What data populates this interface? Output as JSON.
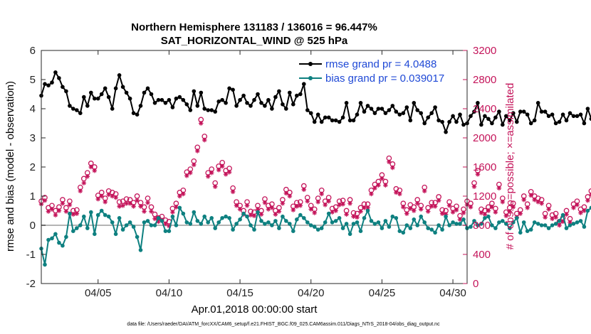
{
  "chart_data": {
    "type": "line",
    "title": [
      "Northern Hemisphere 131183 / 136016 = 96.447%",
      "SAT_HORIZONTAL_WIND @ 525 hPa"
    ],
    "xlabel": "Apr.01,2018 00:00:00 start",
    "ylabel_left": "rmse and bias (model - observation)",
    "ylabel_right": "# of obs: o=possible; ×=assimilated",
    "x_tick_labels": [
      "04/05",
      "04/10",
      "04/15",
      "04/20",
      "04/25",
      "04/30"
    ],
    "x_tick_values": [
      5,
      10,
      15,
      20,
      25,
      30
    ],
    "xlim": [
      1,
      31
    ],
    "ylim_left": [
      -2,
      6
    ],
    "ylim_right": [
      0,
      3200
    ],
    "y_left_ticks": [
      -2,
      -1,
      0,
      1,
      2,
      3,
      4,
      5,
      6
    ],
    "y_right_ticks": [
      0,
      400,
      800,
      1200,
      1600,
      2000,
      2400,
      2800,
      3200
    ],
    "zero_line": 0,
    "series": [
      {
        "name": "rmse",
        "legend": "rmse grand pr = 4.0488",
        "color": "#000000",
        "x_start": 1.0,
        "x_step": 0.25,
        "values": [
          4.45,
          4.85,
          4.8,
          4.9,
          5.25,
          5.05,
          4.75,
          4.6,
          4.1,
          4.0,
          3.95,
          3.85,
          4.4,
          4.1,
          4.55,
          4.35,
          4.35,
          4.5,
          4.7,
          4.4,
          4.0,
          4.7,
          5.15,
          4.75,
          4.55,
          4.35,
          3.85,
          3.8,
          4.1,
          4.55,
          4.7,
          4.5,
          4.2,
          4.3,
          4.3,
          4.2,
          4.3,
          4.05,
          4.35,
          4.4,
          4.3,
          4.15,
          3.95,
          4.6,
          4.1,
          4.55,
          4.0,
          3.95,
          3.95,
          3.9,
          4.25,
          4.3,
          4.2,
          4.7,
          4.65,
          4.1,
          4.3,
          4.45,
          4.2,
          4.1,
          4.3,
          4.5,
          4.2,
          4.1,
          4.3,
          4.0,
          4.4,
          4.6,
          4.15,
          4.0,
          4.55,
          4.15,
          4.45,
          4.5,
          4.85,
          3.95,
          3.85,
          3.55,
          3.8,
          3.55,
          3.7,
          3.7,
          3.6,
          3.6,
          3.55,
          3.7,
          4.2,
          3.6,
          3.6,
          3.8,
          4.2,
          3.9,
          4.1,
          4.0,
          3.85,
          4.0,
          4.0,
          3.85,
          3.95,
          4.1,
          3.9,
          3.8,
          3.85,
          4.05,
          3.6,
          4.2,
          3.95,
          3.85,
          3.5,
          3.7,
          3.85,
          4.05,
          3.6,
          3.55,
          3.2,
          3.55,
          3.75,
          3.55,
          3.8,
          3.45,
          3.5,
          3.75,
          3.9,
          4.2,
          3.45,
          3.75,
          3.65,
          3.5,
          3.7,
          3.9,
          3.45,
          3.75,
          3.6,
          3.85,
          3.55,
          3.9,
          3.9,
          3.8,
          3.5,
          3.6,
          4.2,
          3.9,
          3.9,
          3.75,
          3.8,
          3.5,
          3.55,
          3.8,
          3.6,
          3.85,
          3.75,
          3.75,
          3.8,
          3.5,
          4.0,
          3.65,
          3.8,
          3.75,
          3.75,
          4.15,
          3.9,
          4.05,
          4.2,
          4.55,
          4.4,
          4.6,
          4.15,
          4.6,
          4.45,
          4.6,
          3.85,
          4.05,
          4.25,
          4.15,
          4.45,
          4.5,
          4.0,
          3.85,
          3.75,
          3.75,
          3.9,
          4.25,
          4.05,
          4.1
        ]
      },
      {
        "name": "bias",
        "legend": "bias grand pr = 0.039017",
        "color": "#0e8080",
        "x_start": 1.0,
        "x_step": 0.25,
        "values": [
          -0.8,
          -1.35,
          -0.5,
          -0.45,
          -0.3,
          -0.6,
          -0.7,
          -0.4,
          0.4,
          -0.2,
          -0.1,
          0.0,
          0.3,
          -0.1,
          0.45,
          -0.3,
          0.35,
          0.5,
          0.35,
          0.3,
          0.1,
          -0.3,
          0.25,
          -0.15,
          0.0,
          0.1,
          -0.05,
          -0.4,
          -0.85,
          0.1,
          0.15,
          0.0,
          0.0,
          0.25,
          0.15,
          -0.2,
          -0.2,
          0.3,
          0.0,
          0.6,
          0.4,
          0.1,
          0.05,
          0.45,
          0.15,
          0.05,
          0.3,
          0.1,
          0.25,
          -0.1,
          0.1,
          0.25,
          0.3,
          0.25,
          -0.15,
          0.05,
          0.2,
          0.4,
          0.3,
          0.0,
          -0.15,
          0.45,
          0.15,
          0.05,
          0.1,
          0.0,
          0.15,
          -0.1,
          0.3,
          0.15,
          0.05,
          -0.2,
          0.2,
          0.35,
          0.25,
          0.1,
          0.0,
          -0.05,
          -0.15,
          -0.1,
          0.1,
          0.4,
          0.1,
          0.15,
          0.25,
          -0.1,
          0.05,
          -0.3,
          0.05,
          0.1,
          -0.2,
          0.25,
          0.5,
          0.15,
          0.05,
          0.1,
          -0.1,
          0.15,
          -0.05,
          0.3,
          0.25,
          -0.2,
          -0.25,
          0.0,
          -0.1,
          0.2,
          0.0,
          0.3,
          0.1,
          -0.1,
          -0.15,
          -0.25,
          0.0,
          -0.15,
          0.3,
          0.0,
          0.1,
          0.05,
          0.05,
          0.2,
          -0.1,
          -0.05,
          0.15,
          0.0,
          0.05,
          0.25,
          0.3,
          0.0,
          -0.1,
          0.1,
          0.15,
          0.05,
          -0.1,
          0.1,
          0.25,
          -0.25,
          0.1,
          -0.2,
          -0.15,
          0.1,
          0.05,
          0.0,
          0.0,
          -0.1,
          0.0,
          0.05,
          0.15,
          0.35,
          -0.1,
          0.0,
          0.05,
          0.1,
          0.15,
          -0.05,
          0.5,
          0.6,
          0.1,
          0.25,
          0.2,
          -0.15,
          0.2,
          0.05,
          0.15,
          -0.25,
          0.15,
          -0.05,
          0.2,
          0.6,
          0.75,
          0.35,
          0.5,
          0.1,
          0.05,
          -0.25,
          -0.15,
          -0.05,
          -0.5,
          -0.85,
          -1.05,
          -0.65,
          -0.35,
          -0.35
        ]
      },
      {
        "name": "obs_possible",
        "marker": "o",
        "color": "#c4145a",
        "axis": "right",
        "x_start": 1.0,
        "x_step": 0.25,
        "values": [
          1130,
          1180,
          1040,
          1070,
          1000,
          1050,
          1150,
          1040,
          1130,
          1000,
          1010,
          1320,
          1440,
          1520,
          1650,
          1600,
          1210,
          1250,
          1170,
          1270,
          1250,
          1230,
          1120,
          1130,
          1160,
          1150,
          1110,
          1200,
          1110,
          1050,
          1170,
          1050,
          950,
          900,
          920,
          870,
          850,
          1030,
          1100,
          1250,
          1280,
          1530,
          1570,
          1680,
          1870,
          2250,
          2020,
          1520,
          1570,
          1380,
          1610,
          1660,
          1550,
          1580,
          1310,
          1120,
          1070,
          1000,
          1120,
          990,
          980,
          1070,
          1000,
          1160,
          1070,
          1090,
          1000,
          1040,
          1150,
          1290,
          1250,
          1060,
          1110,
          1120,
          1340,
          1180,
          1070,
          1020,
          1170,
          1280,
          1130,
          1180,
          1030,
          1050,
          1130,
          1140,
          1000,
          1150,
          970,
          960,
          1040,
          1090,
          1090,
          1280,
          1360,
          1400,
          1490,
          1400,
          1720,
          1640,
          1300,
          1280,
          1100,
          1010,
          1080,
          1050,
          1150,
          1070,
          1320,
          1040,
          1110,
          1110,
          1190,
          1010,
          1000,
          1120,
          1030,
          1060,
          930,
          1020,
          1130,
          1100,
          1380,
          1550,
          1020,
          1000,
          1050,
          1100,
          1030,
          1360,
          1170,
          980,
          1040,
          1100,
          960,
          1010,
          1200,
          1090,
          1260,
          1200,
          1170,
          1150,
          960,
          1070,
          940,
          960,
          850,
          900,
          1000,
          890,
          1090,
          1130,
          1020,
          1050,
          1190,
          1270,
          1090,
          1070,
          1110,
          1150,
          1360,
          1560,
          1650,
          1500,
          1360,
          1250,
          1330,
          1250,
          1190,
          1160,
          1110,
          1070,
          1000,
          1200,
          1180,
          1310,
          1250,
          1100,
          950,
          830,
          710,
          560,
          570,
          580,
          550,
          550,
          580,
          670,
          620,
          670,
          700,
          0
        ]
      },
      {
        "name": "obs_assimilated",
        "marker": "*",
        "color": "#c4145a",
        "axis": "right",
        "x_start": 1.0,
        "x_step": 0.25,
        "values": [
          1090,
          1140,
          990,
          1020,
          940,
          1000,
          1100,
          990,
          1080,
          950,
          960,
          1270,
          1380,
          1470,
          1600,
          1550,
          1160,
          1200,
          1120,
          1220,
          1200,
          1180,
          1060,
          1070,
          1100,
          1100,
          1060,
          1140,
          1060,
          990,
          1110,
          990,
          890,
          850,
          870,
          820,
          790,
          980,
          1050,
          1200,
          1230,
          1480,
          1520,
          1630,
          1820,
          2200,
          1970,
          1470,
          1520,
          1330,
          1560,
          1610,
          1500,
          1530,
          1260,
          1070,
          1020,
          950,
          1070,
          940,
          930,
          1020,
          950,
          1110,
          1020,
          1040,
          950,
          990,
          1100,
          1240,
          1200,
          1010,
          1060,
          1070,
          1290,
          1130,
          1020,
          970,
          1120,
          1230,
          1080,
          1130,
          980,
          1000,
          1080,
          1090,
          950,
          1100,
          920,
          910,
          990,
          1040,
          1040,
          1230,
          1310,
          1350,
          1440,
          1350,
          1670,
          1590,
          1250,
          1230,
          1050,
          960,
          1030,
          1000,
          1100,
          1020,
          1270,
          990,
          1060,
          1060,
          1140,
          960,
          950,
          1070,
          980,
          1010,
          880,
          970,
          1080,
          1050,
          1330,
          1500,
          970,
          950,
          1000,
          1050,
          980,
          1310,
          1120,
          930,
          990,
          1050,
          910,
          960,
          1150,
          1040,
          1210,
          1150,
          1120,
          1100,
          910,
          1020,
          890,
          910,
          800,
          850,
          950,
          840,
          1040,
          1080,
          970,
          1000,
          1140,
          1220,
          1040,
          1020,
          1060,
          1100,
          1310,
          1510,
          1600,
          1450,
          1310,
          1200,
          1280,
          1200,
          1140,
          1110,
          1060,
          1020,
          950,
          1150,
          1130,
          1260,
          1200,
          1050,
          900,
          780,
          660,
          510,
          520,
          530,
          500,
          500,
          530,
          620,
          570,
          620,
          650,
          0
        ]
      }
    ]
  },
  "footer": "data file: /Users/raeder/DAI/ATM_forcXX/CAM6_setup/f.e21.FHIST_BGC.f09_025.CAM6assim.011/Diags_NTrS_2018-04/obs_diag_output.nc",
  "colors": {
    "rmse": "#000000",
    "bias": "#0e8080",
    "obs": "#c4145a",
    "legend_text": "#1f49d6"
  }
}
